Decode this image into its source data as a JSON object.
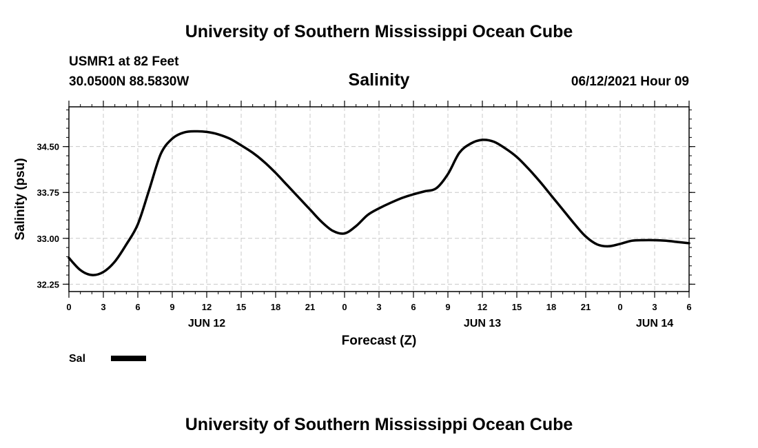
{
  "header": {
    "top_title": "University of Southern Mississippi Ocean Cube",
    "station": "USMR1 at 82 Feet",
    "coords": "30.0500N  88.5830W",
    "variable": "Salinity",
    "timestamp": "06/12/2021 Hour 09"
  },
  "footer": {
    "bottom_title": "University of Southern Mississippi Ocean Cube"
  },
  "legend": {
    "label": "Sal",
    "color": "#000000"
  },
  "colors": {
    "line": "#000000",
    "grid": "#c8c8c8",
    "frame": "#000000"
  },
  "chart_data": {
    "type": "line",
    "title": "Salinity",
    "xlabel": "Forecast (Z)",
    "ylabel": "Salinity (psu)",
    "x_unit": "hours since 2021-06-12 00Z",
    "xlim": [
      0,
      54
    ],
    "ylim": [
      32.13,
      35.15
    ],
    "grid": true,
    "legend_position": "bottom-left",
    "y_ticks": [
      "32.25",
      "33.00",
      "33.75",
      "34.50"
    ],
    "y_tick_values": [
      32.25,
      33.0,
      33.75,
      34.5
    ],
    "x_ticks": [
      "0",
      "3",
      "6",
      "9",
      "12",
      "15",
      "18",
      "21",
      "0",
      "3",
      "6",
      "9",
      "12",
      "15",
      "18",
      "21",
      "0",
      "3",
      "6"
    ],
    "date_labels": [
      {
        "label": "JUN 12",
        "hour": 12
      },
      {
        "label": "JUN 13",
        "hour": 36
      },
      {
        "label": "JUN 14",
        "hour": 51
      }
    ],
    "series": [
      {
        "name": "Sal",
        "x": [
          0,
          1,
          2,
          3,
          4,
          5,
          6,
          7,
          8,
          9,
          10,
          11,
          12,
          13,
          14,
          15,
          16,
          17,
          18,
          19,
          20,
          21,
          22,
          23,
          24,
          25,
          26,
          27,
          28,
          29,
          30,
          31,
          32,
          33,
          34,
          35,
          36,
          37,
          38,
          39,
          40,
          41,
          42,
          43,
          44,
          45,
          46,
          47,
          48,
          49,
          50,
          51,
          52,
          53,
          54
        ],
        "values": [
          32.68,
          32.48,
          32.4,
          32.45,
          32.62,
          32.9,
          33.23,
          33.8,
          34.38,
          34.63,
          34.73,
          34.75,
          34.74,
          34.7,
          34.63,
          34.52,
          34.4,
          34.25,
          34.07,
          33.87,
          33.67,
          33.47,
          33.27,
          33.12,
          33.08,
          33.2,
          33.38,
          33.49,
          33.58,
          33.66,
          33.72,
          33.77,
          33.82,
          34.05,
          34.4,
          34.55,
          34.61,
          34.58,
          34.47,
          34.33,
          34.14,
          33.93,
          33.7,
          33.47,
          33.24,
          33.03,
          32.9,
          32.87,
          32.91,
          32.96,
          32.97,
          32.97,
          32.96,
          32.94,
          32.92
        ]
      }
    ]
  }
}
